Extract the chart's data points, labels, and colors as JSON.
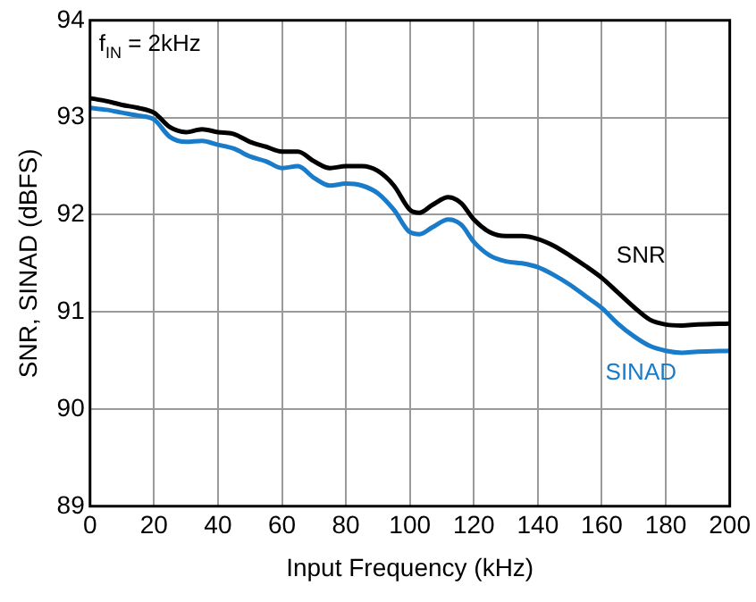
{
  "chart_data": {
    "type": "line",
    "xlabel": "Input Frequency (kHz)",
    "ylabel": "SNR, SINAD (dBFS)",
    "annotations": [
      "f$_{IN}$ = 2kHz"
    ],
    "xlim": [
      0,
      200
    ],
    "xticks": [
      0,
      20,
      40,
      60,
      80,
      100,
      120,
      140,
      160,
      180,
      200
    ],
    "ylim": [
      89,
      94
    ],
    "yticks": [
      89,
      90,
      91,
      92,
      93,
      94
    ],
    "grid": true,
    "legend": false,
    "marker": "none",
    "line_style": "solid",
    "x": [
      0,
      5,
      10,
      15,
      20,
      25,
      30,
      35,
      40,
      45,
      50,
      55,
      60,
      65,
      70,
      75,
      80,
      85,
      90,
      95,
      100,
      103,
      107,
      112,
      116,
      120,
      125,
      130,
      135,
      140,
      145,
      150,
      155,
      160,
      165,
      170,
      175,
      180,
      185,
      190,
      200
    ],
    "series": [
      {
        "name": "SNR",
        "color": "#000000",
        "values": [
          93.2,
          93.17,
          93.13,
          93.1,
          93.05,
          92.9,
          92.85,
          92.88,
          92.85,
          92.83,
          92.75,
          92.7,
          92.65,
          92.65,
          92.55,
          92.48,
          92.5,
          92.5,
          92.45,
          92.3,
          92.05,
          92.02,
          92.1,
          92.18,
          92.12,
          91.95,
          91.82,
          91.78,
          91.78,
          91.75,
          91.68,
          91.58,
          91.47,
          91.35,
          91.2,
          91.05,
          90.92,
          90.87,
          90.86,
          90.87,
          90.88
        ]
      },
      {
        "name": "SINAD",
        "color": "#1a7cc9",
        "values": [
          93.1,
          93.08,
          93.05,
          93.02,
          92.98,
          92.8,
          92.75,
          92.76,
          92.72,
          92.68,
          92.6,
          92.55,
          92.48,
          92.5,
          92.38,
          92.3,
          92.32,
          92.3,
          92.22,
          92.05,
          91.82,
          91.8,
          91.87,
          91.95,
          91.9,
          91.72,
          91.58,
          91.52,
          91.5,
          91.46,
          91.38,
          91.28,
          91.16,
          91.04,
          90.88,
          90.75,
          90.65,
          90.6,
          90.58,
          90.59,
          90.6
        ]
      }
    ]
  }
}
